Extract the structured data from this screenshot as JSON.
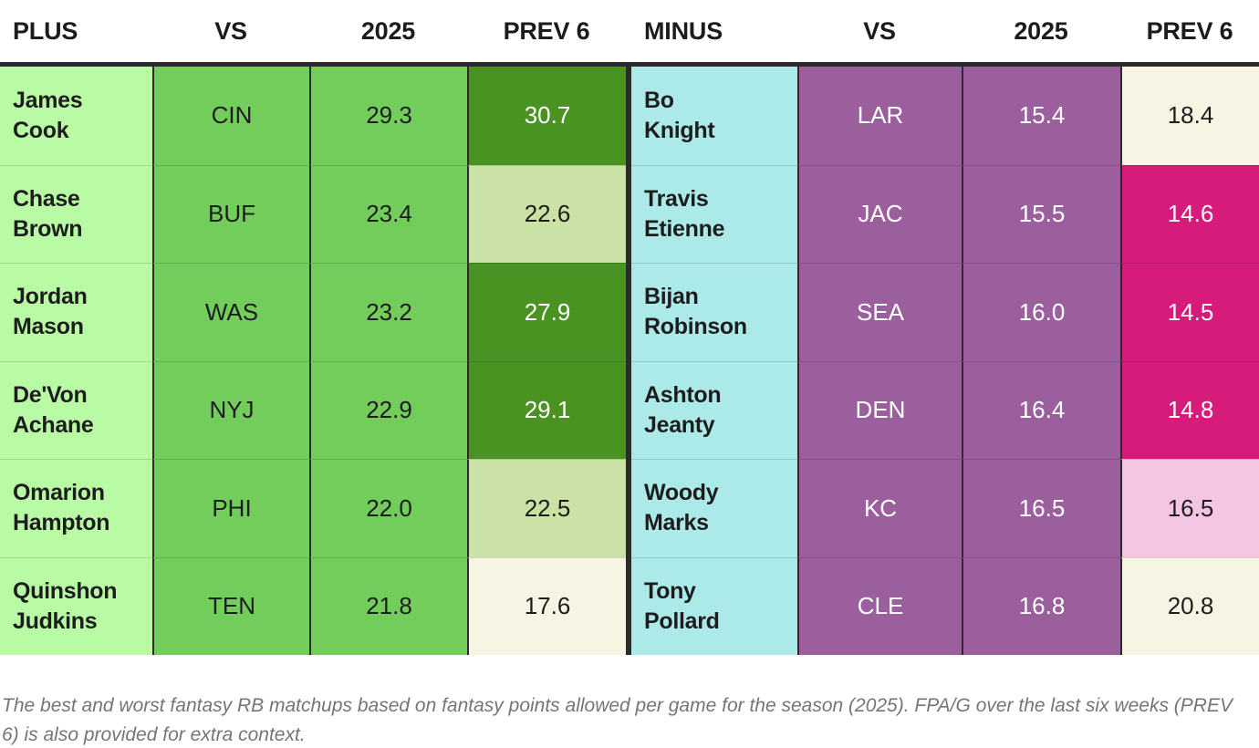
{
  "chart_data": {
    "type": "table",
    "headers": {
      "plus": [
        "PLUS",
        "VS",
        "2025",
        "PREV 6"
      ],
      "minus": [
        "MINUS",
        "VS",
        "2025",
        "PREV 6"
      ]
    },
    "plus_rows": [
      {
        "name_lines": [
          "James",
          "Cook"
        ],
        "name": "James Cook",
        "vs": "CIN",
        "season_2025": "29.3",
        "prev6": "30.7",
        "prev6_variant": "green-dark"
      },
      {
        "name_lines": [
          "Chase",
          "Brown"
        ],
        "name": "Chase Brown",
        "vs": "BUF",
        "season_2025": "23.4",
        "prev6": "22.6",
        "prev6_variant": "green-pale"
      },
      {
        "name_lines": [
          "Jordan",
          "Mason"
        ],
        "name": "Jordan Mason",
        "vs": "WAS",
        "season_2025": "23.2",
        "prev6": "27.9",
        "prev6_variant": "green-dark"
      },
      {
        "name_lines": [
          "De'Von",
          "Achane"
        ],
        "name": "De'Von Achane",
        "vs": "NYJ",
        "season_2025": "22.9",
        "prev6": "29.1",
        "prev6_variant": "green-dark"
      },
      {
        "name_lines": [
          "Omarion",
          "Hampton"
        ],
        "name": "Omarion Hampton",
        "vs": "PHI",
        "season_2025": "22.0",
        "prev6": "22.5",
        "prev6_variant": "green-pale"
      },
      {
        "name_lines": [
          "Quinshon",
          "Judkins"
        ],
        "name": "Quinshon Judkins",
        "vs": "TEN",
        "season_2025": "21.8",
        "prev6": "17.6",
        "prev6_variant": "cream"
      }
    ],
    "minus_rows": [
      {
        "name_lines": [
          "Bo",
          "Knight"
        ],
        "name": "Bo Knight",
        "vs": "LAR",
        "season_2025": "15.4",
        "prev6": "18.4",
        "prev6_variant": "cream"
      },
      {
        "name_lines": [
          "Travis",
          "Etienne"
        ],
        "name": "Travis Etienne",
        "vs": "JAC",
        "season_2025": "15.5",
        "prev6": "14.6",
        "prev6_variant": "magenta"
      },
      {
        "name_lines": [
          "Bijan",
          "Robinson"
        ],
        "name": "Bijan Robinson",
        "vs": "SEA",
        "season_2025": "16.0",
        "prev6": "14.5",
        "prev6_variant": "magenta"
      },
      {
        "name_lines": [
          "Ashton",
          "Jeanty"
        ],
        "name": "Ashton Jeanty",
        "vs": "DEN",
        "season_2025": "16.4",
        "prev6": "14.8",
        "prev6_variant": "magenta"
      },
      {
        "name_lines": [
          "Woody",
          "Marks"
        ],
        "name": "Woody Marks",
        "vs": "KC",
        "season_2025": "16.5",
        "prev6": "16.5",
        "prev6_variant": "pink-pale"
      },
      {
        "name_lines": [
          "Tony",
          "Pollard"
        ],
        "name": "Tony Pollard",
        "vs": "CLE",
        "season_2025": "16.8",
        "prev6": "20.8",
        "prev6_variant": "cream"
      }
    ]
  },
  "caption": "The best and worst fantasy RB matchups based on fantasy points allowed per game for the season (2025). FPA/G over the last six weeks (PREV 6) is also provided for extra context.",
  "colors": {
    "green_light": "#b9fba5",
    "green_mid": "#72cd5b",
    "green_dark": "#4a9222",
    "green_pale": "#cae2a5",
    "cyan_light": "#aceaea",
    "purple_mid": "#9c5f9e",
    "magenta": "#d61b7b",
    "pink_pale": "#f5c6e3",
    "cream": "#f8f4e3",
    "border_dark": "#2b2b2b",
    "header_text": "#1c1c1c",
    "caption_text": "#757575"
  }
}
